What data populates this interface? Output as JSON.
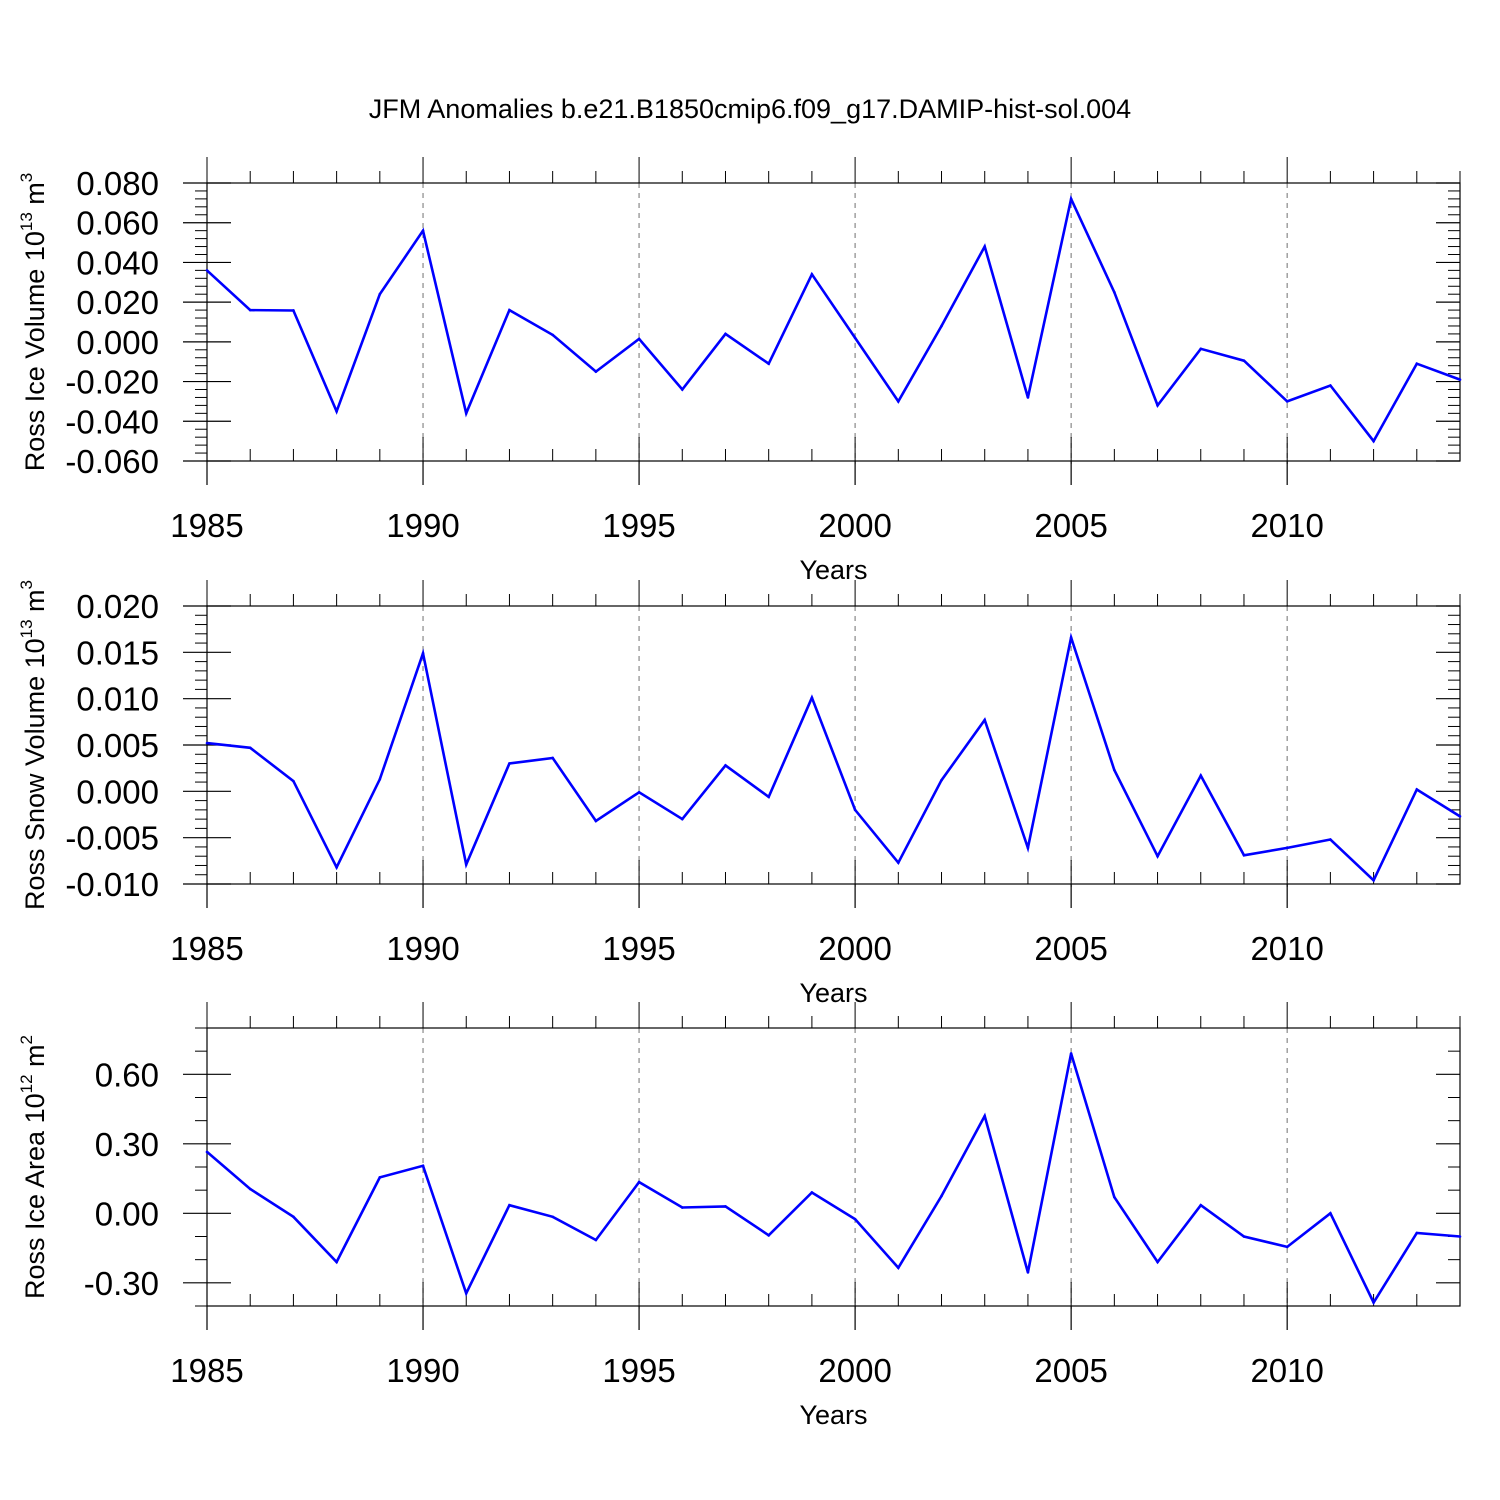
{
  "title": "JFM Anomalies b.e21.B1850cmip6.f09_g17.DAMIP-hist-sol.004",
  "colors": {
    "line": "#0000ff",
    "axis": "#000000",
    "grid": "#888888"
  },
  "chart_data": [
    {
      "type": "line",
      "xlabel": "Years",
      "ylabel": {
        "prefix": "Ross Ice Volume 10",
        "exp": "13",
        "unit": " m",
        "unit_exp": "3"
      },
      "xlim": [
        1985,
        2014
      ],
      "ylim": [
        -0.06,
        0.08
      ],
      "xticks": [
        1985,
        1990,
        1995,
        2000,
        2005,
        2010
      ],
      "xtick_labels": [
        "1985",
        "1990",
        "1995",
        "2000",
        "2005",
        "2010"
      ],
      "yticks": [
        -0.06,
        -0.04,
        -0.02,
        0.0,
        0.02,
        0.04,
        0.06,
        0.08
      ],
      "ytick_labels": [
        "-0.060",
        "-0.040",
        "-0.020",
        "0.000",
        "0.020",
        "0.040",
        "0.060",
        "0.080"
      ],
      "grid_x": [
        1990,
        1995,
        2000,
        2005,
        2010
      ],
      "x": [
        1985,
        1986,
        1987,
        1988,
        1989,
        1990,
        1991,
        1992,
        1993,
        1994,
        1995,
        1996,
        1997,
        1998,
        1999,
        2000,
        2001,
        2002,
        2003,
        2004,
        2005,
        2006,
        2007,
        2008,
        2009,
        2010,
        2011,
        2012,
        2013,
        2014
      ],
      "values": [
        0.036,
        0.016,
        0.0158,
        -0.035,
        0.024,
        0.056,
        -0.036,
        0.016,
        0.0035,
        -0.015,
        0.0015,
        -0.024,
        0.004,
        -0.011,
        0.034,
        0.002,
        -0.03,
        0.008,
        0.048,
        -0.028,
        0.072,
        0.025,
        -0.032,
        -0.0035,
        -0.0095,
        -0.03,
        -0.022,
        -0.05,
        -0.011,
        -0.019
      ]
    },
    {
      "type": "line",
      "xlabel": "Years",
      "ylabel": {
        "prefix": "Ross Snow Volume 10",
        "exp": "13",
        "unit": " m",
        "unit_exp": "3"
      },
      "xlim": [
        1985,
        2014
      ],
      "ylim": [
        -0.01,
        0.02
      ],
      "xticks": [
        1985,
        1990,
        1995,
        2000,
        2005,
        2010
      ],
      "xtick_labels": [
        "1985",
        "1990",
        "1995",
        "2000",
        "2005",
        "2010"
      ],
      "yticks": [
        -0.01,
        -0.005,
        0.0,
        0.005,
        0.01,
        0.015,
        0.02
      ],
      "ytick_labels": [
        "-0.010",
        "-0.005",
        "0.000",
        "0.005",
        "0.010",
        "0.015",
        "0.020"
      ],
      "grid_x": [
        1990,
        1995,
        2000,
        2005,
        2010
      ],
      "x": [
        1985,
        1986,
        1987,
        1988,
        1989,
        1990,
        1991,
        1992,
        1993,
        1994,
        1995,
        1996,
        1997,
        1998,
        1999,
        2000,
        2001,
        2002,
        2003,
        2004,
        2005,
        2006,
        2007,
        2008,
        2009,
        2010,
        2011,
        2012,
        2013,
        2014
      ],
      "values": [
        0.0052,
        0.0047,
        0.0011,
        -0.0082,
        0.0013,
        0.0149,
        -0.0079,
        0.003,
        0.0036,
        -0.0032,
        -0.0001,
        -0.003,
        0.0028,
        -0.0006,
        0.0101,
        -0.002,
        -0.0077,
        0.0012,
        0.0077,
        -0.0061,
        0.0166,
        0.0023,
        -0.007,
        0.0017,
        -0.0069,
        -0.0061,
        -0.0052,
        -0.0096,
        0.0002,
        -0.0027
      ]
    },
    {
      "type": "line",
      "xlabel": "Years",
      "ylabel": {
        "prefix": "Ross Ice Area 10",
        "exp": "12",
        "unit": " m",
        "unit_exp": "2"
      },
      "xlim": [
        1985,
        2014
      ],
      "ylim": [
        -0.4,
        0.8
      ],
      "xticks": [
        1985,
        1990,
        1995,
        2000,
        2005,
        2010
      ],
      "xtick_labels": [
        "1985",
        "1990",
        "1995",
        "2000",
        "2005",
        "2010"
      ],
      "yticks": [
        -0.3,
        0.0,
        0.3,
        0.6
      ],
      "ytick_labels": [
        "-0.30",
        "0.00",
        "0.30",
        "0.60"
      ],
      "minor_step": 0.1,
      "grid_x": [
        1990,
        1995,
        2000,
        2005,
        2010
      ],
      "x": [
        1985,
        1986,
        1987,
        1988,
        1989,
        1990,
        1991,
        1992,
        1993,
        1994,
        1995,
        1996,
        1997,
        1998,
        1999,
        2000,
        2001,
        2002,
        2003,
        2004,
        2005,
        2006,
        2007,
        2008,
        2009,
        2010,
        2011,
        2012,
        2013,
        2014
      ],
      "values": [
        0.265,
        0.105,
        -0.015,
        -0.21,
        0.155,
        0.205,
        -0.345,
        0.035,
        -0.015,
        -0.115,
        0.135,
        0.025,
        0.03,
        -0.095,
        0.09,
        -0.025,
        -0.235,
        0.075,
        0.42,
        -0.255,
        0.69,
        0.07,
        -0.21,
        0.035,
        -0.1,
        -0.145,
        0.0,
        -0.385,
        -0.085,
        -0.1
      ]
    }
  ]
}
